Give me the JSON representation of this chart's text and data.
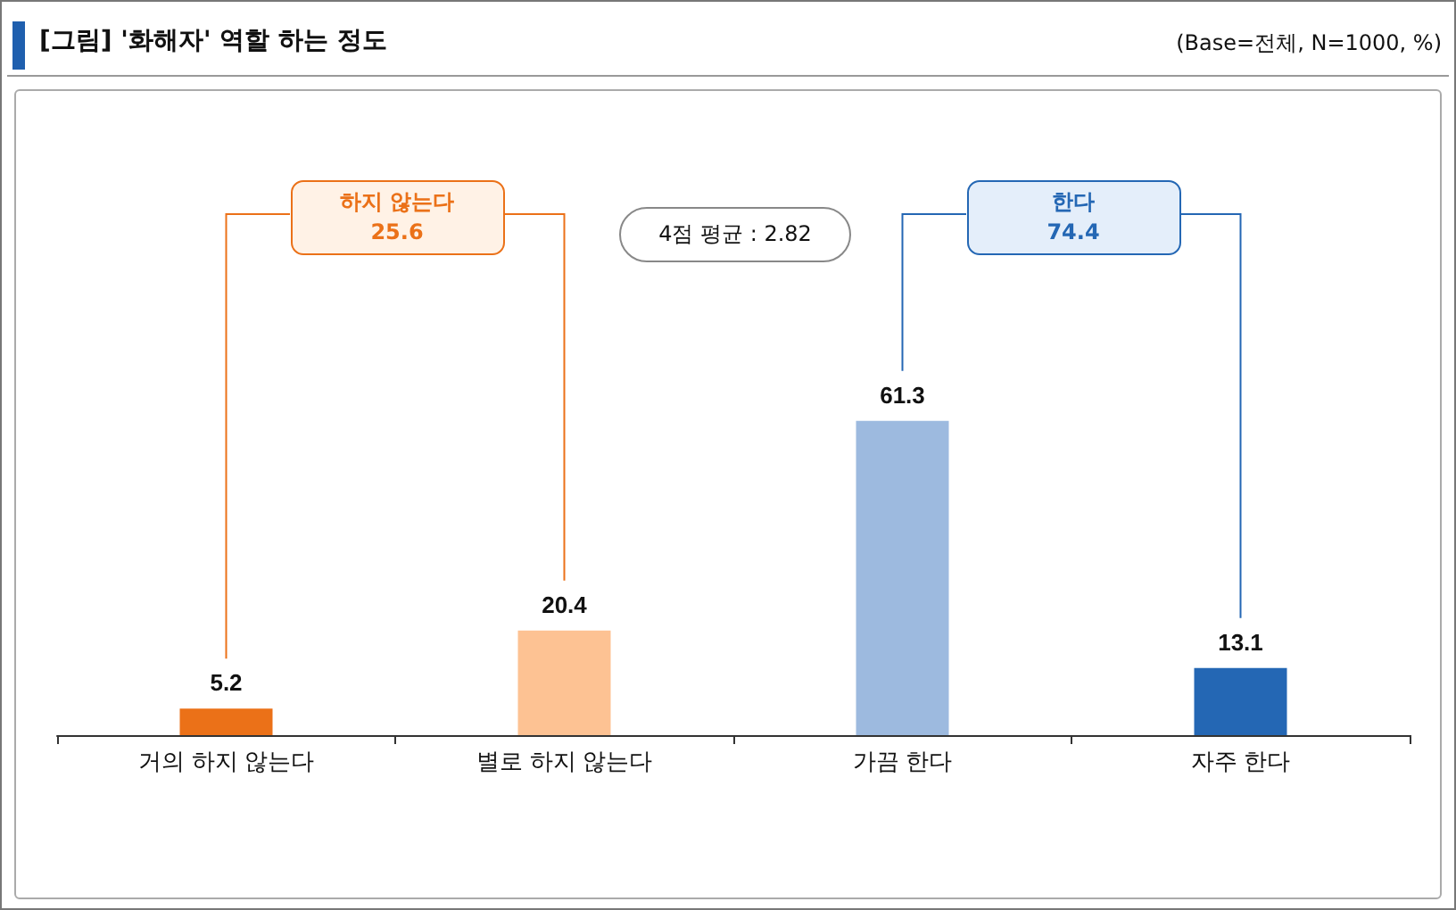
{
  "chart_data": {
    "type": "bar",
    "title": "[그림] '화해자' 역할 하는 정도",
    "subtitle": "(Base=전체, N=1000, %)",
    "categories": [
      "거의 하지 않는다",
      "별로 하지 않는다",
      "가끔 한다",
      "자주 한다"
    ],
    "values": [
      5.2,
      20.4,
      61.3,
      13.1
    ],
    "colors": [
      "#eb7118",
      "#fdc293",
      "#9dbadf",
      "#2467b4"
    ],
    "data_labels": true,
    "annotations": [
      "하지 않는다\n25.6",
      "4점 평균 : 2.82",
      "한다\n74.4"
    ]
  }
}
